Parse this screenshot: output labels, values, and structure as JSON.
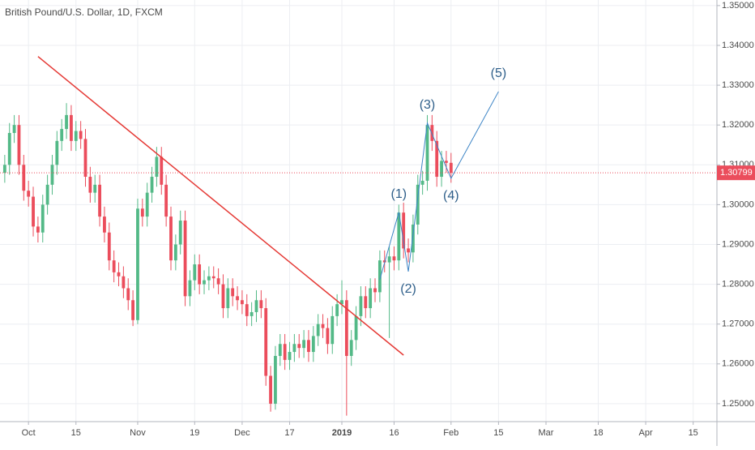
{
  "chart_data": {
    "type": "candlestick",
    "title": "British Pound/U.S. Dollar, 1D, FXCM",
    "x": [
      "2018-09-24",
      "2018-09-25",
      "2018-09-26",
      "2018-09-27",
      "2018-09-28",
      "2018-10-01",
      "2018-10-02",
      "2018-10-03",
      "2018-10-04",
      "2018-10-05",
      "2018-10-08",
      "2018-10-09",
      "2018-10-10",
      "2018-10-11",
      "2018-10-12",
      "2018-10-15",
      "2018-10-16",
      "2018-10-17",
      "2018-10-18",
      "2018-10-19",
      "2018-10-22",
      "2018-10-23",
      "2018-10-24",
      "2018-10-25",
      "2018-10-26",
      "2018-10-29",
      "2018-10-30",
      "2018-10-31",
      "2018-11-01",
      "2018-11-02",
      "2018-11-05",
      "2018-11-06",
      "2018-11-07",
      "2018-11-08",
      "2018-11-09",
      "2018-11-12",
      "2018-11-13",
      "2018-11-14",
      "2018-11-15",
      "2018-11-16",
      "2018-11-19",
      "2018-11-20",
      "2018-11-21",
      "2018-11-22",
      "2018-11-23",
      "2018-11-26",
      "2018-11-27",
      "2018-11-28",
      "2018-11-29",
      "2018-11-30",
      "2018-12-03",
      "2018-12-04",
      "2018-12-05",
      "2018-12-06",
      "2018-12-07",
      "2018-12-10",
      "2018-12-11",
      "2018-12-12",
      "2018-12-13",
      "2018-12-14",
      "2018-12-17",
      "2018-12-18",
      "2018-12-19",
      "2018-12-20",
      "2018-12-21",
      "2018-12-24",
      "2018-12-25",
      "2018-12-26",
      "2018-12-27",
      "2018-12-28",
      "2018-12-31",
      "2019-01-01",
      "2019-01-02",
      "2019-01-03",
      "2019-01-04",
      "2019-01-07",
      "2019-01-08",
      "2019-01-09",
      "2019-01-10",
      "2019-01-11",
      "2019-01-14",
      "2019-01-15",
      "2019-01-16",
      "2019-01-17",
      "2019-01-18",
      "2019-01-21",
      "2019-01-22",
      "2019-01-23",
      "2019-01-24",
      "2019-01-25",
      "2019-01-28",
      "2019-01-29",
      "2019-01-30",
      "2019-01-31",
      "2019-02-01"
    ],
    "open": [
      1.308,
      1.31,
      1.318,
      1.32,
      1.31,
      1.3035,
      1.302,
      1.2945,
      1.293,
      1.3,
      1.305,
      1.31,
      1.316,
      1.319,
      1.3225,
      1.316,
      1.3185,
      1.3165,
      1.307,
      1.303,
      1.305,
      1.297,
      1.293,
      1.286,
      1.283,
      1.282,
      1.279,
      1.276,
      1.271,
      1.299,
      1.297,
      1.303,
      1.307,
      1.312,
      1.305,
      1.297,
      1.286,
      1.29,
      1.296,
      1.277,
      1.281,
      1.285,
      1.28,
      1.281,
      1.282,
      1.2815,
      1.28,
      1.274,
      1.279,
      1.277,
      1.276,
      1.275,
      1.272,
      1.273,
      1.276,
      1.274,
      1.257,
      1.25,
      1.262,
      1.265,
      1.261,
      1.263,
      1.265,
      1.264,
      1.266,
      1.263,
      1.267,
      1.27,
      1.269,
      1.265,
      1.272,
      1.275,
      1.276,
      1.262,
      1.266,
      1.272,
      1.277,
      1.274,
      1.279,
      1.278,
      1.286,
      1.2855,
      1.287,
      1.286,
      1.298,
      1.289,
      1.288,
      1.295,
      1.305,
      1.306,
      1.32,
      1.316,
      1.307,
      1.311,
      1.3105
    ],
    "high": [
      1.3125,
      1.3205,
      1.3225,
      1.3225,
      1.3125,
      1.306,
      1.3045,
      1.297,
      1.3025,
      1.3075,
      1.3125,
      1.3185,
      1.3215,
      1.3255,
      1.325,
      1.321,
      1.321,
      1.319,
      1.3095,
      1.3075,
      1.3075,
      1.2995,
      1.2955,
      1.2885,
      1.2855,
      1.2845,
      1.2815,
      1.2785,
      1.3015,
      1.3015,
      1.3055,
      1.3095,
      1.3145,
      1.3145,
      1.3075,
      1.2995,
      1.2925,
      1.2985,
      1.2985,
      1.2835,
      1.2875,
      1.2875,
      1.2835,
      1.2845,
      1.2845,
      1.284,
      1.2825,
      1.2815,
      1.2815,
      1.2795,
      1.2785,
      1.2775,
      1.2755,
      1.2785,
      1.2785,
      1.2765,
      1.2595,
      1.2645,
      1.2675,
      1.2675,
      1.2655,
      1.2675,
      1.2675,
      1.2685,
      1.2685,
      1.2695,
      1.2725,
      1.2725,
      1.2715,
      1.2745,
      1.2775,
      1.281,
      1.2785,
      1.2685,
      1.2745,
      1.2795,
      1.2795,
      1.2815,
      1.2815,
      1.2885,
      1.2885,
      1.2895,
      1.2895,
      1.3,
      1.3005,
      1.2915,
      1.2975,
      1.3075,
      1.3085,
      1.3225,
      1.3225,
      1.3185,
      1.3135,
      1.3135,
      1.313
    ],
    "low": [
      1.3055,
      1.3075,
      1.3155,
      1.3075,
      1.301,
      1.2995,
      1.292,
      1.2905,
      1.2905,
      1.2975,
      1.3025,
      1.3075,
      1.3135,
      1.3165,
      1.3135,
      1.3135,
      1.314,
      1.3045,
      1.3005,
      1.3005,
      1.2945,
      1.2905,
      1.2835,
      1.2805,
      1.2795,
      1.2765,
      1.2735,
      1.2695,
      1.27,
      1.2945,
      1.2945,
      1.3005,
      1.3045,
      1.3025,
      1.2945,
      1.2835,
      1.2835,
      1.2875,
      1.2745,
      1.2745,
      1.2785,
      1.2775,
      1.2775,
      1.2785,
      1.279,
      1.2775,
      1.2715,
      1.2715,
      1.2745,
      1.2735,
      1.2725,
      1.2695,
      1.2695,
      1.2705,
      1.2715,
      1.2545,
      1.248,
      1.2485,
      1.2595,
      1.2585,
      1.2585,
      1.2605,
      1.2615,
      1.2615,
      1.2605,
      1.2605,
      1.2645,
      1.2665,
      1.2625,
      1.2625,
      1.2695,
      1.2725,
      1.247,
      1.2595,
      1.2635,
      1.2695,
      1.2715,
      1.2715,
      1.2755,
      1.2755,
      1.283,
      1.2665,
      1.2835,
      1.2835,
      1.2865,
      1.2855,
      1.2855,
      1.2925,
      1.3025,
      1.3035,
      1.3135,
      1.3045,
      1.3045,
      1.308,
      1.3055
    ],
    "close": [
      1.31,
      1.318,
      1.32,
      1.31,
      1.3035,
      1.302,
      1.2945,
      1.293,
      1.3,
      1.305,
      1.31,
      1.316,
      1.319,
      1.3225,
      1.316,
      1.3185,
      1.3165,
      1.307,
      1.303,
      1.305,
      1.297,
      1.293,
      1.286,
      1.283,
      1.282,
      1.279,
      1.276,
      1.271,
      1.299,
      1.297,
      1.303,
      1.307,
      1.312,
      1.305,
      1.297,
      1.286,
      1.29,
      1.296,
      1.277,
      1.281,
      1.285,
      1.28,
      1.281,
      1.282,
      1.2815,
      1.28,
      1.274,
      1.279,
      1.277,
      1.276,
      1.275,
      1.272,
      1.273,
      1.276,
      1.274,
      1.257,
      1.25,
      1.262,
      1.265,
      1.261,
      1.263,
      1.265,
      1.264,
      1.266,
      1.263,
      1.267,
      1.27,
      1.269,
      1.265,
      1.272,
      1.275,
      1.276,
      1.262,
      1.266,
      1.272,
      1.277,
      1.274,
      1.279,
      1.278,
      1.286,
      1.2855,
      1.287,
      1.286,
      1.298,
      1.289,
      1.288,
      1.295,
      1.305,
      1.306,
      1.32,
      1.316,
      1.307,
      1.311,
      1.3105,
      1.308
    ],
    "up_color": "#53b987",
    "down_color": "#eb4d5c",
    "xlim": [
      "2018-09-21",
      "2019-04-22"
    ],
    "xticks": [
      {
        "value": "2018-10-01",
        "label": "Oct"
      },
      {
        "value": "2018-10-15",
        "label": "15"
      },
      {
        "value": "2018-11-01",
        "label": "Nov"
      },
      {
        "value": "2018-11-19",
        "label": "19"
      },
      {
        "value": "2018-12-03",
        "label": "Dec"
      },
      {
        "value": "2018-12-17",
        "label": "17"
      },
      {
        "value": "2019-01-01",
        "label": "2019"
      },
      {
        "value": "2019-01-16",
        "label": "16"
      },
      {
        "value": "2019-02-01",
        "label": "Feb"
      },
      {
        "value": "2019-02-15",
        "label": "15"
      },
      {
        "value": "2019-03-01",
        "label": "Mar"
      },
      {
        "value": "2019-03-18",
        "label": "18"
      },
      {
        "value": "2019-04-01",
        "label": "Apr"
      },
      {
        "value": "2019-04-15",
        "label": "15"
      }
    ],
    "ylim": [
      1.2455,
      1.3514
    ],
    "yticks": [
      {
        "value": 1.25,
        "label": "1.25000"
      },
      {
        "value": 1.26,
        "label": "1.26000"
      },
      {
        "value": 1.27,
        "label": "1.27000"
      },
      {
        "value": 1.28,
        "label": "1.28000"
      },
      {
        "value": 1.29,
        "label": "1.29000"
      },
      {
        "value": 1.3,
        "label": "1.30000"
      },
      {
        "value": 1.31,
        "label": "1.31000"
      },
      {
        "value": 1.32,
        "label": "1.32000"
      },
      {
        "value": 1.33,
        "label": "1.33000"
      },
      {
        "value": 1.34,
        "label": "1.34000"
      },
      {
        "value": 1.35,
        "label": "1.35000"
      }
    ],
    "grid": true,
    "last_price": {
      "value": 1.30799,
      "label": "1.30799"
    },
    "trendline": {
      "color": "#e53935",
      "start": {
        "date": "2018-10-03",
        "price": 1.3372
      },
      "end": {
        "date": "2019-01-18",
        "price": 1.2622
      }
    },
    "wave_color": "#3d85c6",
    "wave_start": {
      "date": "2019-01-11",
      "price": 1.2812
    },
    "waves": [
      {
        "label": "(1)",
        "date": "2019-01-17",
        "price": 1.2981
      },
      {
        "label": "(2)",
        "date": "2019-01-21",
        "price": 1.2832
      },
      {
        "label": "(3)",
        "date": "2019-01-25",
        "price": 1.3205
      },
      {
        "label": "(4)",
        "date": "2019-02-01",
        "price": 1.3066
      },
      {
        "label": "(5)",
        "date": "2019-02-15",
        "price": 1.3284
      }
    ]
  }
}
